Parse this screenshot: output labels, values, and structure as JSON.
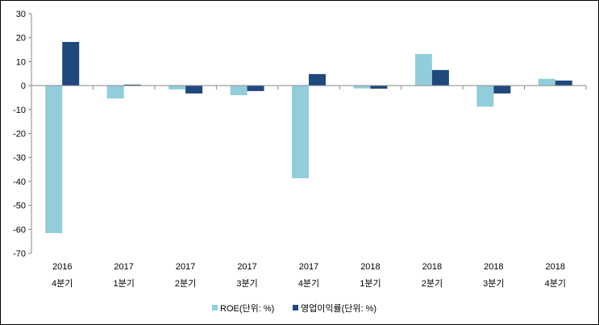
{
  "chart_data": {
    "type": "bar",
    "title": "",
    "xlabel": "",
    "ylabel": "",
    "categories": [
      [
        "2016",
        "4분기"
      ],
      [
        "2017",
        "1분기"
      ],
      [
        "2017",
        "2분기"
      ],
      [
        "2017",
        "3분기"
      ],
      [
        "2017",
        "4분기"
      ],
      [
        "2018",
        "1분기"
      ],
      [
        "2018",
        "2분기"
      ],
      [
        "2018",
        "3분기"
      ],
      [
        "2018",
        "4분기"
      ]
    ],
    "series": [
      {
        "name": "ROE(단위: %)",
        "color": "#92CDDC",
        "values": [
          -61.6,
          -5.4,
          -1.6,
          -4.0,
          -38.7,
          -1.2,
          13.2,
          -8.8,
          2.8
        ]
      },
      {
        "name": "영업이익률(단위: %)",
        "color": "#1F497D",
        "values": [
          18.2,
          0.4,
          -3.3,
          -2.3,
          4.8,
          -1.3,
          6.5,
          -3.3,
          2.1
        ]
      }
    ],
    "ylim": [
      -70,
      30
    ],
    "yticks": [
      30,
      20,
      10,
      0,
      -10,
      -20,
      -30,
      -40,
      -50,
      -60,
      -70
    ],
    "grid": false,
    "legend": "bottom"
  }
}
